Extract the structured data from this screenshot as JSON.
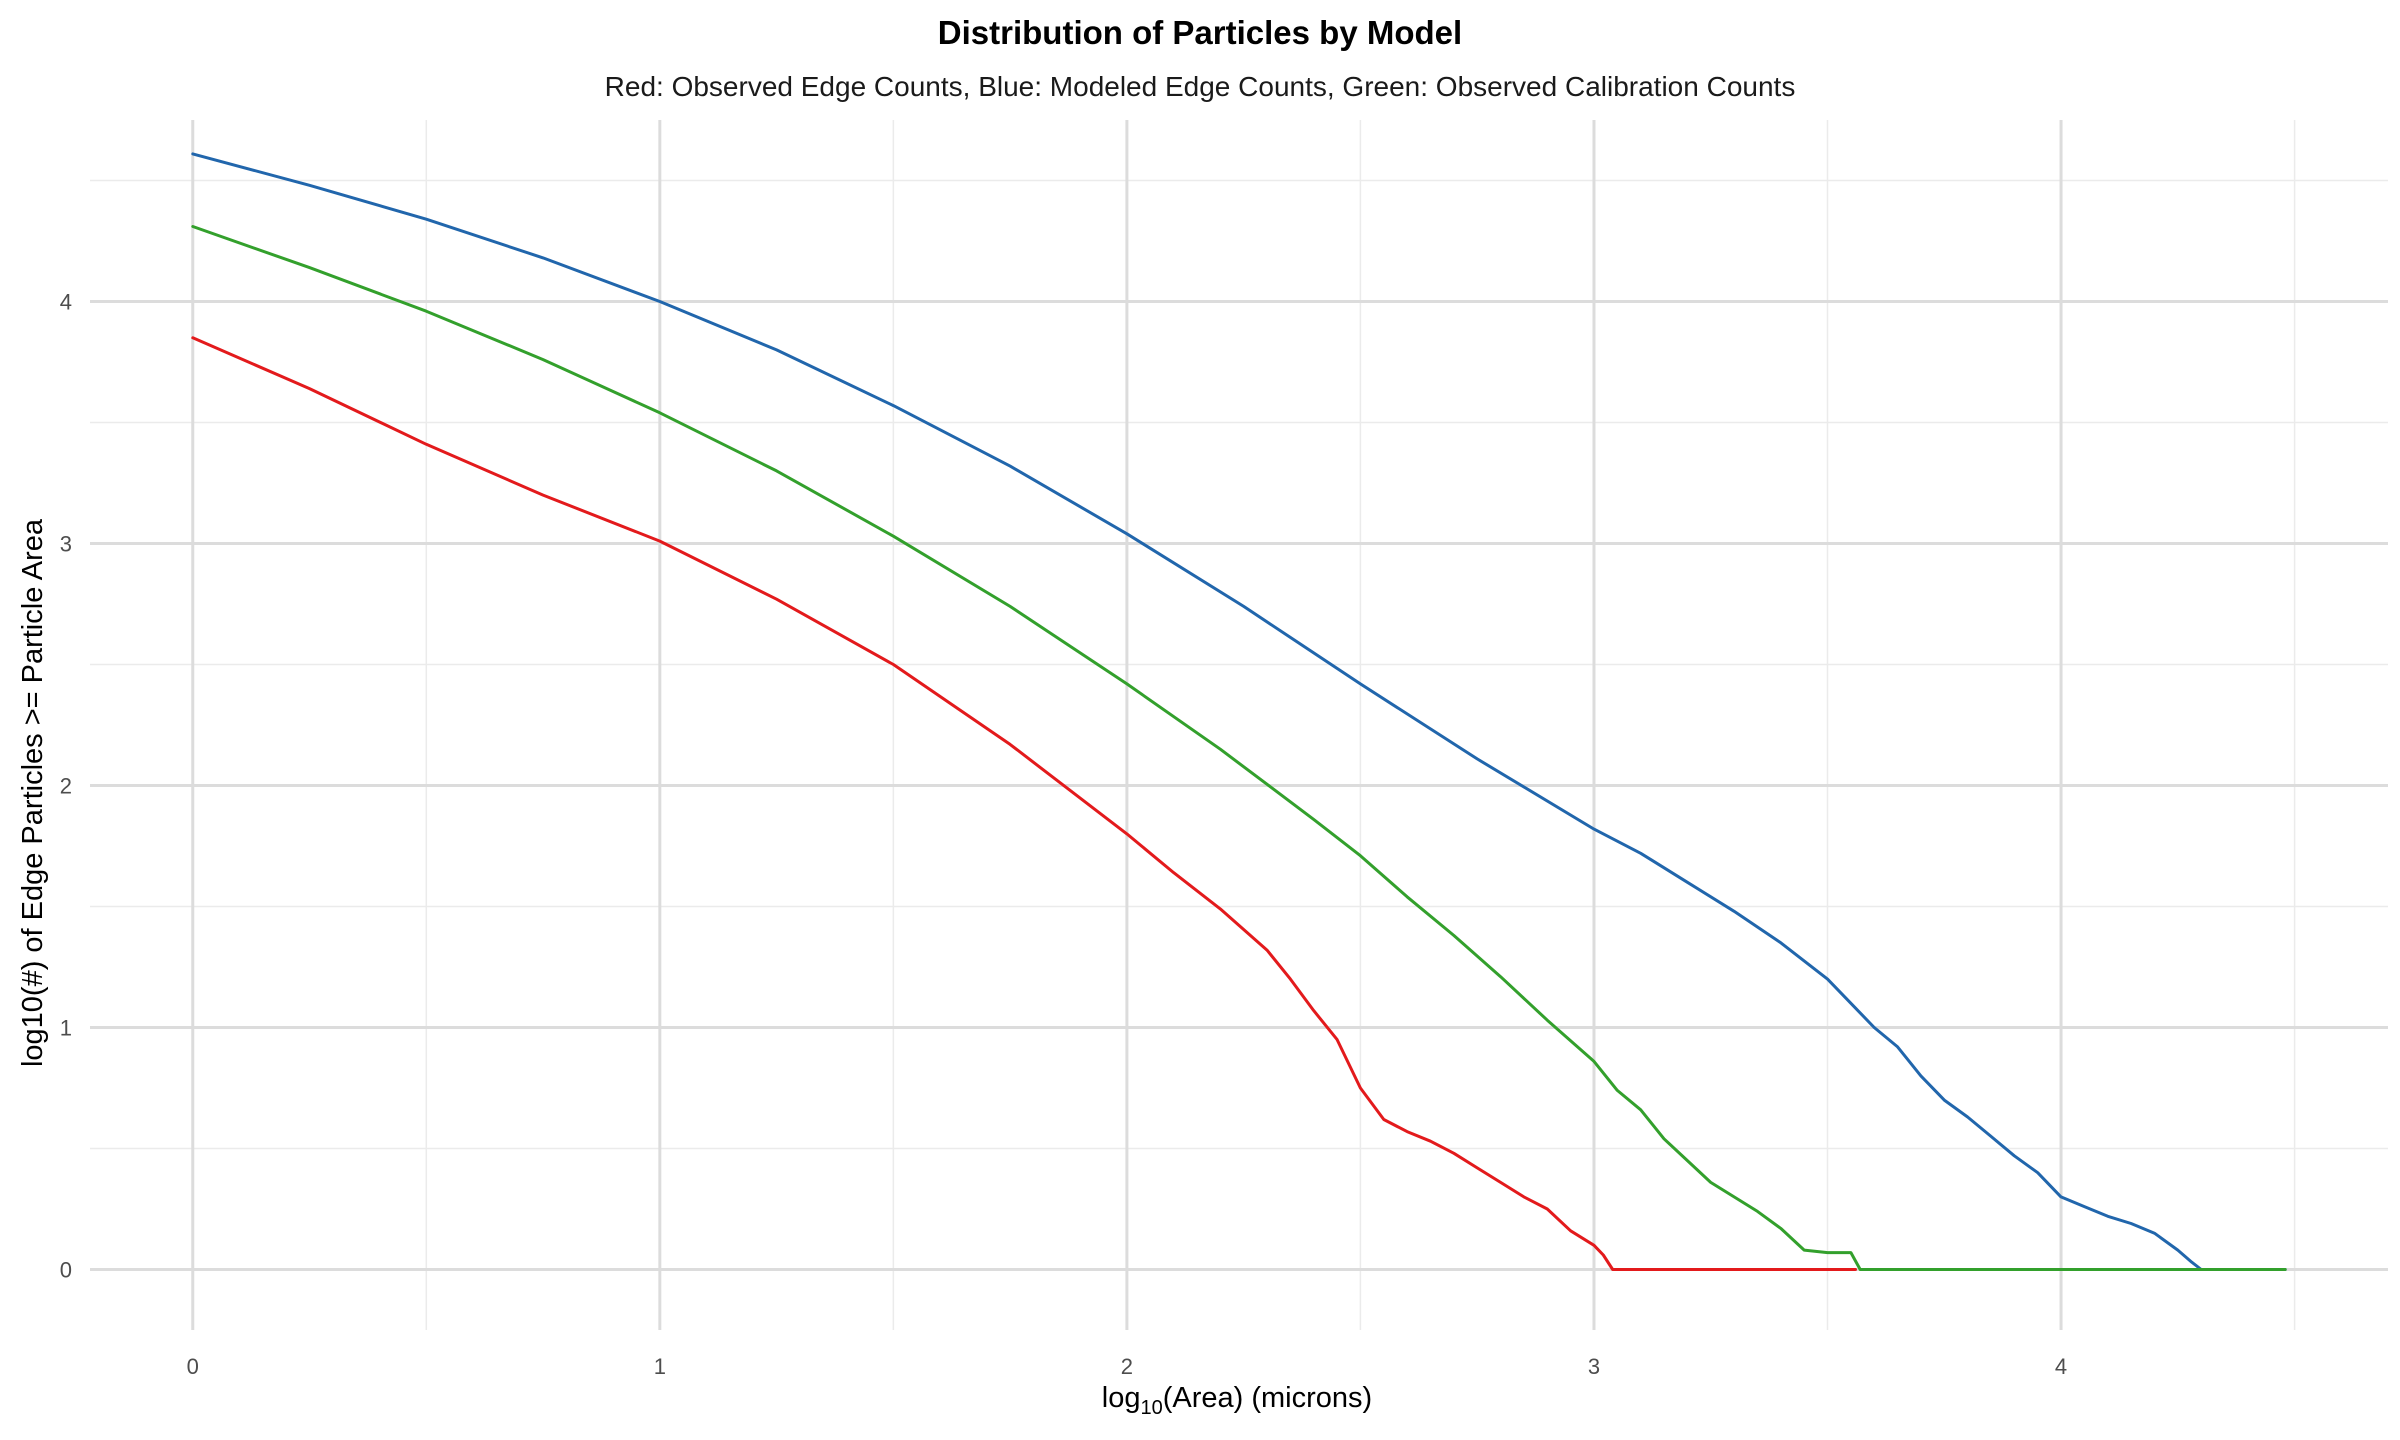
{
  "chart_data": {
    "type": "line",
    "title": "Distribution of Particles by Model",
    "subtitle": "Red: Observed Edge Counts, Blue: Modeled Edge Counts, Green: Observed Calibration Counts",
    "xlabel_prefix": "log",
    "xlabel_subscript": "10",
    "xlabel_suffix": "(Area) (microns)",
    "ylabel": "log10(#) of Edge Particles >= Particle Area",
    "xlim": [
      -0.22,
      4.7
    ],
    "ylim": [
      -0.25,
      4.75
    ],
    "x_ticks": [
      0,
      1,
      2,
      3,
      4
    ],
    "y_ticks": [
      0,
      1,
      2,
      3,
      4
    ],
    "x_tick_labels": [
      "0",
      "1",
      "2",
      "3",
      "4"
    ],
    "y_tick_labels": [
      "0",
      "1",
      "2",
      "3",
      "4"
    ],
    "grid": true,
    "legend": "none",
    "series": [
      {
        "color": "#2166ac",
        "x": [
          0,
          0.25,
          0.5,
          0.75,
          1.0,
          1.25,
          1.5,
          1.75,
          2.0,
          2.25,
          2.5,
          2.75,
          3.0,
          3.1,
          3.2,
          3.3,
          3.4,
          3.5,
          3.55,
          3.6,
          3.65,
          3.7,
          3.75,
          3.8,
          3.85,
          3.9,
          3.95,
          4.0,
          4.05,
          4.1,
          4.15,
          4.2,
          4.25,
          4.28,
          4.3,
          4.48
        ],
        "y": [
          4.61,
          4.48,
          4.34,
          4.18,
          4.0,
          3.8,
          3.57,
          3.32,
          3.04,
          2.74,
          2.42,
          2.11,
          1.82,
          1.72,
          1.6,
          1.48,
          1.35,
          1.2,
          1.1,
          1.0,
          0.92,
          0.8,
          0.7,
          0.63,
          0.55,
          0.47,
          0.4,
          0.3,
          0.26,
          0.22,
          0.19,
          0.15,
          0.08,
          0.03,
          0.0,
          0.0
        ]
      },
      {
        "color": "#33a02c",
        "x": [
          0,
          0.25,
          0.5,
          0.75,
          1.0,
          1.25,
          1.5,
          1.75,
          2.0,
          2.2,
          2.4,
          2.5,
          2.6,
          2.7,
          2.8,
          2.9,
          3.0,
          3.05,
          3.1,
          3.15,
          3.2,
          3.25,
          3.3,
          3.35,
          3.4,
          3.45,
          3.5,
          3.55,
          3.57,
          4.48
        ],
        "y": [
          4.31,
          4.14,
          3.96,
          3.76,
          3.54,
          3.3,
          3.03,
          2.74,
          2.42,
          2.15,
          1.86,
          1.71,
          1.54,
          1.38,
          1.21,
          1.03,
          0.86,
          0.74,
          0.66,
          0.54,
          0.45,
          0.36,
          0.3,
          0.24,
          0.17,
          0.08,
          0.07,
          0.07,
          0.0,
          0.0
        ]
      },
      {
        "color": "#e31a1c",
        "x": [
          0,
          0.25,
          0.5,
          0.75,
          1.0,
          1.25,
          1.5,
          1.75,
          2.0,
          2.1,
          2.2,
          2.3,
          2.35,
          2.4,
          2.45,
          2.5,
          2.55,
          2.6,
          2.65,
          2.7,
          2.75,
          2.8,
          2.85,
          2.9,
          2.95,
          3.0,
          3.02,
          3.04,
          3.56
        ],
        "y": [
          3.85,
          3.64,
          3.41,
          3.2,
          3.01,
          2.77,
          2.5,
          2.17,
          1.8,
          1.64,
          1.49,
          1.32,
          1.2,
          1.07,
          0.95,
          0.75,
          0.62,
          0.57,
          0.53,
          0.48,
          0.42,
          0.36,
          0.3,
          0.25,
          0.16,
          0.1,
          0.06,
          0.0,
          0.0
        ]
      }
    ]
  }
}
